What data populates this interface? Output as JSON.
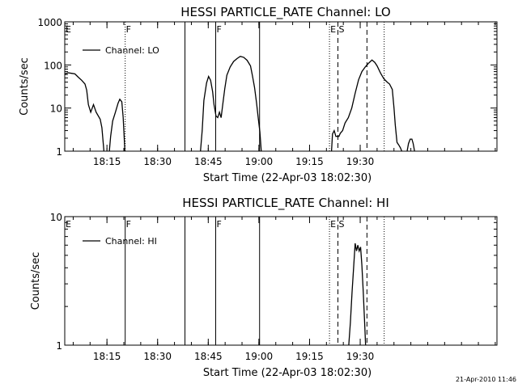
{
  "footer": {
    "timestamp": "21-Apr-2010 11:46"
  },
  "chart_data": [
    {
      "type": "line",
      "title": "HESSI PARTICLE_RATE Channel: LO",
      "xlabel": "Start Time (22-Apr-03 18:02:30)",
      "ylabel": "Counts/sec",
      "x_unit": "minutes after 18:02:30",
      "xlim": [
        0,
        128
      ],
      "ylim": [
        1,
        1000
      ],
      "yscale": "log",
      "x_tick_labels": [
        "18:15",
        "18:30",
        "18:45",
        "19:00",
        "19:15",
        "19:30"
      ],
      "x_ticks": [
        12.5,
        27.5,
        42.5,
        57.5,
        72.5,
        87.5
      ],
      "y_tick_labels": [
        "1",
        "10",
        "100",
        "1000"
      ],
      "y_ticks": [
        1,
        10,
        100,
        1000
      ],
      "legend": {
        "position": "top-left",
        "entries": [
          "Channel: LO"
        ]
      },
      "series": [
        {
          "name": "Channel: LO",
          "segments": [
            [
              [
                0,
                62
              ],
              [
                1,
                66
              ],
              [
                2,
                64
              ],
              [
                3,
                62
              ],
              [
                4,
                52
              ],
              [
                5,
                44
              ],
              [
                6,
                36
              ],
              [
                6.5,
                26
              ],
              [
                7,
                12
              ],
              [
                7.7,
                8
              ],
              [
                8.5,
                12
              ],
              [
                9.3,
                8
              ],
              [
                10.5,
                5.5
              ],
              [
                11,
                3.5
              ],
              [
                11.6,
                1
              ]
            ],
            [
              [
                13.2,
                1
              ],
              [
                13.6,
                2.2
              ],
              [
                14.2,
                5
              ],
              [
                15,
                8
              ],
              [
                15.8,
                13
              ],
              [
                16.3,
                16
              ],
              [
                16.9,
                14
              ],
              [
                17.3,
                6
              ],
              [
                17.8,
                1
              ]
            ],
            [
              [
                40.2,
                1
              ],
              [
                40.7,
                3
              ],
              [
                41.2,
                15
              ],
              [
                42,
                38
              ],
              [
                42.6,
                54
              ],
              [
                43.2,
                44
              ],
              [
                43.8,
                24
              ],
              [
                44.2,
                12
              ],
              [
                44.8,
                6.5
              ],
              [
                45.3,
                6
              ],
              [
                45.8,
                8
              ],
              [
                46.3,
                6
              ],
              [
                46.8,
                12
              ],
              [
                47.4,
                28
              ],
              [
                48,
                58
              ],
              [
                49,
                90
              ],
              [
                50,
                120
              ],
              [
                51,
                140
              ],
              [
                52,
                158
              ],
              [
                53,
                150
              ],
              [
                54,
                128
              ],
              [
                55,
                95
              ],
              [
                55.6,
                55
              ],
              [
                56.2,
                30
              ],
              [
                56.8,
                13
              ],
              [
                57.3,
                6
              ],
              [
                57.8,
                2.8
              ],
              [
                58.2,
                1
              ]
            ],
            [
              [
                79,
                1
              ],
              [
                79.3,
                2.5
              ],
              [
                79.8,
                3
              ],
              [
                80.3,
                2.2
              ],
              [
                80.8,
                2.2
              ],
              [
                81.2,
                2.2
              ],
              [
                81.6,
                2.6
              ],
              [
                82.3,
                3
              ],
              [
                83,
                4.5
              ],
              [
                84,
                6
              ],
              [
                85,
                10
              ],
              [
                86,
                22
              ],
              [
                87,
                45
              ],
              [
                88,
                70
              ],
              [
                89,
                90
              ],
              [
                90,
                110
              ],
              [
                91,
                130
              ],
              [
                91.8,
                115
              ],
              [
                92.5,
                95
              ],
              [
                93.5,
                65
              ],
              [
                94.5,
                48
              ],
              [
                95.5,
                40
              ],
              [
                96.2,
                36
              ],
              [
                97,
                27
              ],
              [
                97.5,
                10
              ],
              [
                97.9,
                4
              ],
              [
                98.4,
                1.6
              ],
              [
                98.9,
                1.4
              ],
              [
                99.4,
                1.2
              ],
              [
                99.8,
                1
              ]
            ],
            [
              [
                101.4,
                1
              ],
              [
                101.8,
                1.5
              ],
              [
                102.3,
                1.9
              ],
              [
                102.8,
                1.9
              ],
              [
                103.2,
                1.5
              ],
              [
                103.6,
                1
              ]
            ]
          ]
        }
      ],
      "event_lines": [
        {
          "x": 17.9,
          "style": "dotted",
          "label": "F"
        },
        {
          "x": 35.6,
          "style": "solid",
          "label": ""
        },
        {
          "x": 44.7,
          "style": "solid",
          "label": "F"
        },
        {
          "x": 57.7,
          "style": "solid",
          "label": ""
        },
        {
          "x": 78.4,
          "style": "dotted",
          "label": "E"
        },
        {
          "x": 80.9,
          "style": "dashed",
          "label": "S"
        },
        {
          "x": 89.5,
          "style": "dashed",
          "label": ""
        },
        {
          "x": 94.6,
          "style": "dotted",
          "label": ""
        }
      ],
      "edge_labels": {
        "left": "E"
      }
    },
    {
      "type": "line",
      "title": "HESSI PARTICLE_RATE Channel: HI",
      "xlabel": "Start Time (22-Apr-03 18:02:30)",
      "ylabel": "Counts/sec",
      "x_unit": "minutes after 18:02:30",
      "xlim": [
        0,
        128
      ],
      "ylim": [
        1,
        10
      ],
      "yscale": "log",
      "x_tick_labels": [
        "18:15",
        "18:30",
        "18:45",
        "19:00",
        "19:15",
        "19:30"
      ],
      "x_ticks": [
        12.5,
        27.5,
        42.5,
        57.5,
        72.5,
        87.5
      ],
      "y_tick_labels": [
        "1",
        "10"
      ],
      "y_ticks": [
        1,
        10
      ],
      "legend": {
        "position": "top-left",
        "entries": [
          "Channel: HI"
        ]
      },
      "series": [
        {
          "name": "Channel: HI",
          "segments": [
            [
              [
                84.1,
                1
              ],
              [
                84.6,
                1.5
              ],
              [
                85.1,
                2.6
              ],
              [
                85.6,
                4.2
              ],
              [
                86.0,
                6.2
              ],
              [
                86.4,
                5.4
              ],
              [
                86.8,
                6.0
              ],
              [
                87.2,
                5.4
              ],
              [
                87.6,
                5.8
              ],
              [
                88.0,
                4.2
              ],
              [
                88.4,
                2.6
              ],
              [
                88.8,
                1.5
              ],
              [
                89.1,
                1
              ]
            ]
          ]
        }
      ],
      "event_lines": [
        {
          "x": 17.9,
          "style": "solid",
          "label": "F"
        },
        {
          "x": 35.6,
          "style": "solid",
          "label": ""
        },
        {
          "x": 44.7,
          "style": "solid",
          "label": "F"
        },
        {
          "x": 57.7,
          "style": "solid",
          "label": ""
        },
        {
          "x": 78.4,
          "style": "dotted",
          "label": "E"
        },
        {
          "x": 80.9,
          "style": "dashed",
          "label": "S"
        },
        {
          "x": 89.5,
          "style": "dashed",
          "label": ""
        },
        {
          "x": 94.6,
          "style": "dotted",
          "label": ""
        }
      ],
      "edge_labels": {
        "left": "E"
      }
    }
  ]
}
